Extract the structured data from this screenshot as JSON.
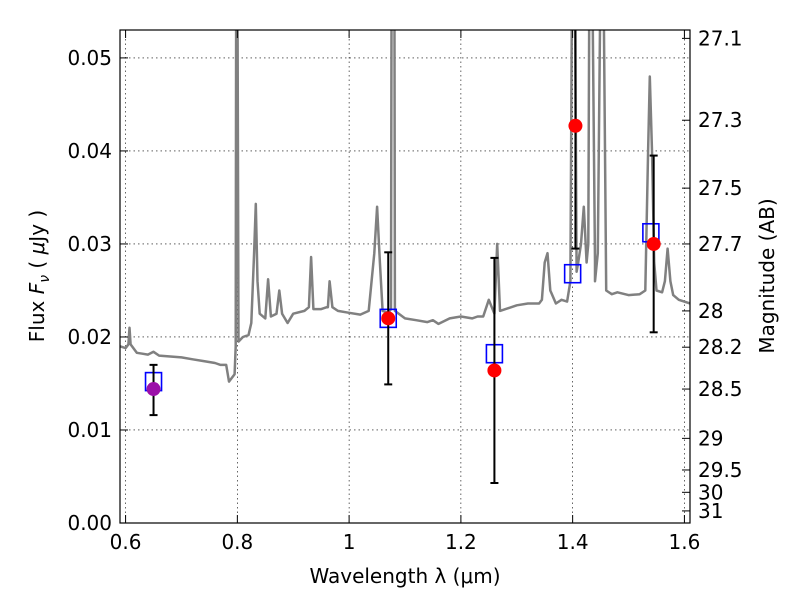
{
  "chart_data": {
    "type": "line",
    "xlabel": "Wavelength  λ (μm)",
    "ylabel_left": "Flux  F_ν  ( μJy )",
    "ylabel_right": "Magnitude (AB)",
    "xlim": [
      0.59,
      1.61
    ],
    "ylim": [
      0.0,
      0.053
    ],
    "grid": true,
    "grid_style": "dotted",
    "x_ticks": [
      0.6,
      0.8,
      1.0,
      1.2,
      1.4,
      1.6
    ],
    "x_tick_labels": [
      "0.6",
      "0.8",
      "1",
      "1.2",
      "1.4",
      "1.6"
    ],
    "y_ticks": [
      0.0,
      0.01,
      0.02,
      0.03,
      0.04,
      0.05
    ],
    "y_tick_labels": [
      "0.00",
      "0.01",
      "0.02",
      "0.03",
      "0.04",
      "0.05"
    ],
    "right_ticks": [
      {
        "label": "27.1",
        "flux": 0.0521
      },
      {
        "label": "27.3",
        "flux": 0.0433
      },
      {
        "label": "27.5",
        "flux": 0.036
      },
      {
        "label": "27.7",
        "flux": 0.03
      },
      {
        "label": "28",
        "flux": 0.0228
      },
      {
        "label": "28.2",
        "flux": 0.0189
      },
      {
        "label": "28.5",
        "flux": 0.0144
      },
      {
        "label": "29",
        "flux": 0.0091
      },
      {
        "label": "29.5",
        "flux": 0.0057
      },
      {
        "label": "30",
        "flux": 0.0033
      },
      {
        "label": "31",
        "flux": 0.0013
      }
    ],
    "colors": {
      "spectrum": "#808080",
      "model_box": "#0000ff",
      "observed": "#ff0000",
      "observed_first": "#9b0fa8",
      "errorbar": "#000000"
    },
    "spectrum": [
      [
        0.59,
        0.019
      ],
      [
        0.6,
        0.0188
      ],
      [
        0.605,
        0.0192
      ],
      [
        0.607,
        0.021
      ],
      [
        0.609,
        0.0192
      ],
      [
        0.62,
        0.0183
      ],
      [
        0.63,
        0.0182
      ],
      [
        0.64,
        0.0181
      ],
      [
        0.65,
        0.0184
      ],
      [
        0.66,
        0.018
      ],
      [
        0.68,
        0.0179
      ],
      [
        0.7,
        0.0178
      ],
      [
        0.72,
        0.0176
      ],
      [
        0.74,
        0.0174
      ],
      [
        0.76,
        0.0172
      ],
      [
        0.77,
        0.017
      ],
      [
        0.78,
        0.017
      ],
      [
        0.785,
        0.0152
      ],
      [
        0.795,
        0.016
      ],
      [
        0.797,
        0.019
      ],
      [
        0.798,
        0.06
      ],
      [
        0.8,
        0.06
      ],
      [
        0.802,
        0.0195
      ],
      [
        0.81,
        0.02
      ],
      [
        0.82,
        0.0202
      ],
      [
        0.825,
        0.0215
      ],
      [
        0.83,
        0.029
      ],
      [
        0.833,
        0.0343
      ],
      [
        0.836,
        0.026
      ],
      [
        0.84,
        0.0225
      ],
      [
        0.85,
        0.022
      ],
      [
        0.855,
        0.0262
      ],
      [
        0.86,
        0.0222
      ],
      [
        0.87,
        0.0225
      ],
      [
        0.875,
        0.025
      ],
      [
        0.88,
        0.0225
      ],
      [
        0.89,
        0.0215
      ],
      [
        0.9,
        0.0225
      ],
      [
        0.92,
        0.0228
      ],
      [
        0.928,
        0.0232
      ],
      [
        0.932,
        0.0286
      ],
      [
        0.936,
        0.023
      ],
      [
        0.95,
        0.023
      ],
      [
        0.96,
        0.0232
      ],
      [
        0.962,
        0.0232
      ],
      [
        0.965,
        0.026
      ],
      [
        0.97,
        0.0232
      ],
      [
        0.98,
        0.0228
      ],
      [
        1.0,
        0.0226
      ],
      [
        1.02,
        0.0224
      ],
      [
        1.035,
        0.0228
      ],
      [
        1.045,
        0.029
      ],
      [
        1.05,
        0.034
      ],
      [
        1.055,
        0.028
      ],
      [
        1.06,
        0.0228
      ],
      [
        1.07,
        0.0226
      ],
      [
        1.075,
        0.023
      ],
      [
        1.076,
        0.06
      ],
      [
        1.081,
        0.06
      ],
      [
        1.082,
        0.0228
      ],
      [
        1.1,
        0.022
      ],
      [
        1.12,
        0.0218
      ],
      [
        1.14,
        0.0216
      ],
      [
        1.15,
        0.0218
      ],
      [
        1.16,
        0.0214
      ],
      [
        1.18,
        0.022
      ],
      [
        1.2,
        0.0222
      ],
      [
        1.22,
        0.022
      ],
      [
        1.23,
        0.0222
      ],
      [
        1.24,
        0.0222
      ],
      [
        1.25,
        0.024
      ],
      [
        1.26,
        0.0225
      ],
      [
        1.265,
        0.03
      ],
      [
        1.27,
        0.0228
      ],
      [
        1.28,
        0.023
      ],
      [
        1.3,
        0.0234
      ],
      [
        1.32,
        0.0236
      ],
      [
        1.34,
        0.0236
      ],
      [
        1.345,
        0.024
      ],
      [
        1.35,
        0.028
      ],
      [
        1.355,
        0.029
      ],
      [
        1.36,
        0.025
      ],
      [
        1.37,
        0.0236
      ],
      [
        1.38,
        0.024
      ],
      [
        1.39,
        0.0238
      ],
      [
        1.396,
        0.026
      ],
      [
        1.399,
        0.06
      ],
      [
        1.404,
        0.06
      ],
      [
        1.407,
        0.027
      ],
      [
        1.41,
        0.028
      ],
      [
        1.415,
        0.03
      ],
      [
        1.42,
        0.034
      ],
      [
        1.425,
        0.028
      ],
      [
        1.428,
        0.03
      ],
      [
        1.43,
        0.06
      ],
      [
        1.435,
        0.06
      ],
      [
        1.44,
        0.028
      ],
      [
        1.44,
        0.026
      ],
      [
        1.445,
        0.029
      ],
      [
        1.45,
        0.06
      ],
      [
        1.455,
        0.06
      ],
      [
        1.46,
        0.025
      ],
      [
        1.47,
        0.0246
      ],
      [
        1.48,
        0.0248
      ],
      [
        1.5,
        0.0245
      ],
      [
        1.52,
        0.0246
      ],
      [
        1.53,
        0.025
      ],
      [
        1.535,
        0.04
      ],
      [
        1.538,
        0.048
      ],
      [
        1.542,
        0.04
      ],
      [
        1.546,
        0.028
      ],
      [
        1.55,
        0.025
      ],
      [
        1.56,
        0.0248
      ],
      [
        1.565,
        0.026
      ],
      [
        1.57,
        0.0295
      ],
      [
        1.575,
        0.026
      ],
      [
        1.58,
        0.0245
      ],
      [
        1.59,
        0.024
      ],
      [
        1.61,
        0.0236
      ]
    ],
    "model_points": [
      {
        "x": 0.65,
        "y": 0.0152
      },
      {
        "x": 1.07,
        "y": 0.022
      },
      {
        "x": 1.26,
        "y": 0.0182
      },
      {
        "x": 1.4,
        "y": 0.0268
      },
      {
        "x": 1.54,
        "y": 0.0312
      }
    ],
    "observed_points": [
      {
        "x": 0.65,
        "y": 0.0144,
        "err_low": 0.0116,
        "err_high": 0.017
      },
      {
        "x": 1.07,
        "y": 0.022,
        "err_low": 0.0149,
        "err_high": 0.0291
      },
      {
        "x": 1.26,
        "y": 0.0164,
        "err_low": 0.0043,
        "err_high": 0.0285
      },
      {
        "x": 1.405,
        "y": 0.0427,
        "err_low": 0.0295,
        "err_high": 0.06
      },
      {
        "x": 1.545,
        "y": 0.03,
        "err_low": 0.0205,
        "err_high": 0.0395
      }
    ]
  }
}
